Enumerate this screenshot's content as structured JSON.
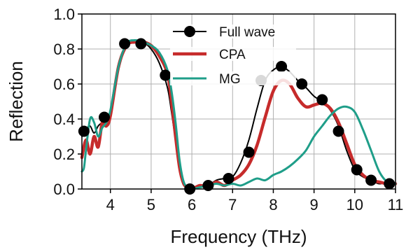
{
  "chart_data": {
    "type": "line",
    "xlabel": "Frequency (THz)",
    "ylabel": "Reflection",
    "xlim": [
      3.3,
      11.0
    ],
    "ylim": [
      0.0,
      1.0
    ],
    "xticks": [
      4,
      5,
      6,
      7,
      8,
      9,
      10,
      11
    ],
    "yticks": [
      0.0,
      0.2,
      0.4,
      0.6,
      0.8,
      1.0
    ],
    "grid": true,
    "legend_position": "top-center",
    "series": [
      {
        "name": "Full wave",
        "color": "#000000",
        "marker": "circle",
        "x": [
          3.3,
          3.4,
          3.5,
          3.6,
          3.7,
          3.8,
          3.9,
          4.0,
          4.2,
          4.4,
          4.6,
          4.8,
          5.0,
          5.2,
          5.4,
          5.5,
          5.6,
          5.7,
          5.8,
          5.9,
          6.0,
          6.2,
          6.4,
          6.6,
          6.8,
          7.0,
          7.2,
          7.4,
          7.6,
          7.8,
          8.0,
          8.2,
          8.4,
          8.6,
          8.8,
          9.0,
          9.2,
          9.4,
          9.6,
          9.8,
          10.0,
          10.2,
          10.4,
          10.6,
          10.8,
          11.0
        ],
        "y": [
          0.3,
          0.34,
          0.36,
          0.32,
          0.36,
          0.38,
          0.4,
          0.45,
          0.68,
          0.83,
          0.85,
          0.84,
          0.8,
          0.72,
          0.58,
          0.44,
          0.28,
          0.13,
          0.04,
          0.01,
          0.0,
          0.01,
          0.02,
          0.05,
          0.06,
          0.07,
          0.15,
          0.28,
          0.46,
          0.62,
          0.68,
          0.7,
          0.67,
          0.62,
          0.58,
          0.53,
          0.5,
          0.45,
          0.36,
          0.22,
          0.11,
          0.07,
          0.05,
          0.03,
          0.04,
          0.03
        ]
      },
      {
        "name": "CPA",
        "color": "#c62b2b",
        "x": [
          3.3,
          3.4,
          3.5,
          3.6,
          3.7,
          3.8,
          3.9,
          4.0,
          4.2,
          4.4,
          4.6,
          4.8,
          5.0,
          5.2,
          5.4,
          5.5,
          5.6,
          5.7,
          5.8,
          5.9,
          6.0,
          6.2,
          6.4,
          6.6,
          6.8,
          7.0,
          7.2,
          7.4,
          7.6,
          7.8,
          8.0,
          8.2,
          8.4,
          8.6,
          8.8,
          9.0,
          9.2,
          9.4,
          9.6,
          9.8,
          10.0,
          10.2,
          10.4,
          10.6,
          10.8,
          11.0
        ],
        "y": [
          0.18,
          0.28,
          0.2,
          0.3,
          0.24,
          0.38,
          0.36,
          0.42,
          0.7,
          0.82,
          0.84,
          0.84,
          0.82,
          0.76,
          0.66,
          0.5,
          0.3,
          0.12,
          0.03,
          0.01,
          0.0,
          0.02,
          0.01,
          0.04,
          0.02,
          0.05,
          0.08,
          0.14,
          0.25,
          0.41,
          0.56,
          0.62,
          0.6,
          0.52,
          0.47,
          0.48,
          0.49,
          0.46,
          0.38,
          0.26,
          0.14,
          0.08,
          0.05,
          0.04,
          0.03,
          0.03
        ]
      },
      {
        "name": "MG",
        "color": "#1f9e89",
        "x": [
          3.3,
          3.35,
          3.4,
          3.5,
          3.6,
          3.7,
          3.8,
          3.9,
          4.0,
          4.2,
          4.4,
          4.6,
          4.8,
          5.0,
          5.2,
          5.4,
          5.5,
          5.6,
          5.7,
          5.8,
          5.9,
          6.0,
          6.2,
          6.4,
          6.6,
          6.8,
          7.0,
          7.2,
          7.4,
          7.6,
          7.8,
          8.0,
          8.2,
          8.4,
          8.6,
          8.8,
          9.0,
          9.2,
          9.4,
          9.6,
          9.8,
          10.0,
          10.2,
          10.4,
          10.6,
          10.8,
          11.0
        ],
        "y": [
          0.1,
          0.12,
          0.22,
          0.4,
          0.38,
          0.3,
          0.35,
          0.38,
          0.45,
          0.7,
          0.83,
          0.85,
          0.84,
          0.82,
          0.78,
          0.68,
          0.56,
          0.38,
          0.16,
          0.04,
          0.01,
          0.0,
          0.01,
          0.02,
          0.03,
          0.02,
          0.03,
          0.02,
          0.04,
          0.06,
          0.05,
          0.08,
          0.1,
          0.13,
          0.17,
          0.22,
          0.3,
          0.36,
          0.42,
          0.46,
          0.47,
          0.44,
          0.34,
          0.22,
          0.1,
          0.04,
          0.03
        ]
      }
    ],
    "marker_points": {
      "x": [
        3.35,
        3.85,
        4.35,
        4.75,
        5.35,
        5.95,
        6.4,
        6.9,
        7.4,
        7.7,
        8.2,
        8.7,
        9.2,
        9.6,
        10.05,
        10.4,
        10.85
      ],
      "y": [
        0.33,
        0.41,
        0.83,
        0.83,
        0.65,
        0.0,
        0.02,
        0.06,
        0.21,
        0.62,
        0.7,
        0.6,
        0.51,
        0.33,
        0.11,
        0.05,
        0.03
      ]
    }
  }
}
